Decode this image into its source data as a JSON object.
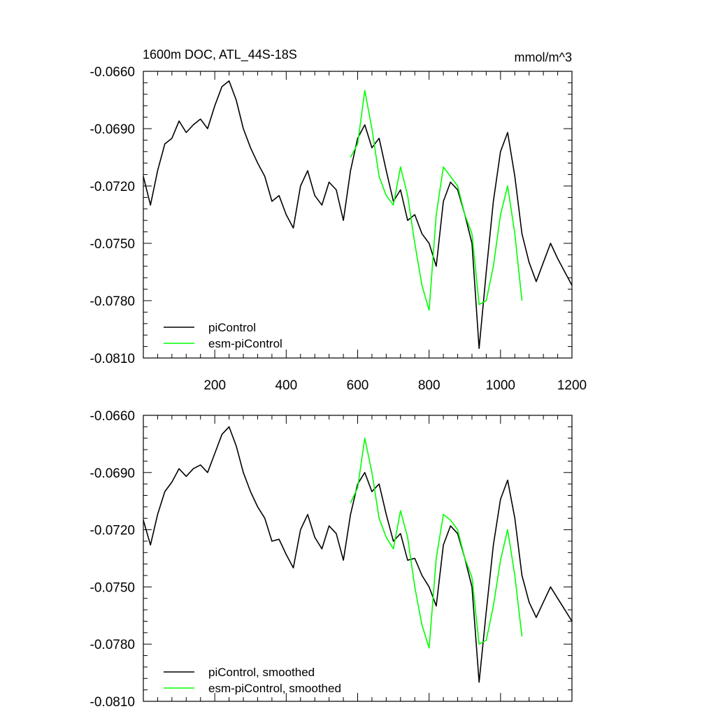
{
  "chart_data": [
    {
      "type": "line",
      "title": "1600m DOC, ATL_44S-18S",
      "units": "mmol/m^3",
      "xlim": [
        0,
        1200
      ],
      "ylim": [
        -0.081,
        -0.066
      ],
      "xticks": [
        200,
        400,
        600,
        800,
        1000,
        1200
      ],
      "xtick_labels": [
        "200",
        "400",
        "600",
        "800",
        "1000",
        "1200"
      ],
      "yticks": [
        -0.066,
        -0.069,
        -0.072,
        -0.075,
        -0.078,
        -0.081
      ],
      "ytick_labels": [
        "-0.0660",
        "-0.0690",
        "-0.0720",
        "-0.0750",
        "-0.0780",
        "-0.0810"
      ],
      "grid": false,
      "legend_position": "bottom-left",
      "series": [
        {
          "name": "piControl",
          "color": "#000000",
          "x": [
            0,
            20,
            40,
            60,
            80,
            100,
            120,
            140,
            160,
            180,
            200,
            220,
            240,
            260,
            280,
            300,
            320,
            340,
            360,
            380,
            400,
            420,
            440,
            460,
            480,
            500,
            520,
            540,
            560,
            580,
            600,
            620,
            640,
            660,
            680,
            700,
            720,
            740,
            760,
            780,
            800,
            820,
            840,
            860,
            880,
            900,
            920,
            940,
            960,
            980,
            1000,
            1020,
            1040,
            1060,
            1080,
            1100,
            1120,
            1140,
            1160,
            1180,
            1200
          ],
          "y": [
            -0.0715,
            -0.073,
            -0.0712,
            -0.0698,
            -0.0695,
            -0.0686,
            -0.0692,
            -0.0688,
            -0.0685,
            -0.069,
            -0.0678,
            -0.0668,
            -0.0665,
            -0.0675,
            -0.069,
            -0.07,
            -0.0708,
            -0.0715,
            -0.0728,
            -0.0725,
            -0.0735,
            -0.0742,
            -0.072,
            -0.0712,
            -0.0725,
            -0.073,
            -0.0718,
            -0.0722,
            -0.0738,
            -0.0712,
            -0.0695,
            -0.0688,
            -0.07,
            -0.0695,
            -0.0712,
            -0.0728,
            -0.0722,
            -0.0738,
            -0.0735,
            -0.0745,
            -0.075,
            -0.0762,
            -0.0728,
            -0.0718,
            -0.0722,
            -0.0735,
            -0.075,
            -0.0805,
            -0.0765,
            -0.0728,
            -0.0702,
            -0.0692,
            -0.0715,
            -0.0745,
            -0.076,
            -0.077,
            -0.076,
            -0.075,
            -0.0758,
            -0.0765,
            -0.0772
          ]
        },
        {
          "name": "esm-piControl",
          "color": "#00ff00",
          "x": [
            580,
            600,
            620,
            640,
            660,
            680,
            700,
            720,
            740,
            760,
            780,
            800,
            820,
            840,
            860,
            880,
            900,
            920,
            940,
            960,
            980,
            1000,
            1020,
            1040,
            1060
          ],
          "y": [
            -0.0705,
            -0.0698,
            -0.067,
            -0.069,
            -0.0715,
            -0.0725,
            -0.073,
            -0.071,
            -0.0725,
            -0.075,
            -0.0772,
            -0.0785,
            -0.0735,
            -0.071,
            -0.0715,
            -0.072,
            -0.0735,
            -0.0745,
            -0.0782,
            -0.078,
            -0.0762,
            -0.0735,
            -0.072,
            -0.0745,
            -0.078
          ]
        }
      ]
    },
    {
      "type": "line",
      "xlim": [
        0,
        1200
      ],
      "ylim": [
        -0.081,
        -0.066
      ],
      "xticks": [
        200,
        400,
        600,
        800,
        1000,
        1200
      ],
      "yticks": [
        -0.066,
        -0.069,
        -0.072,
        -0.075,
        -0.078,
        -0.081
      ],
      "ytick_labels": [
        "-0.0660",
        "-0.0690",
        "-0.0720",
        "-0.0750",
        "-0.0780",
        "-0.0810"
      ],
      "grid": false,
      "legend_position": "bottom-left",
      "series": [
        {
          "name": "piControl, smoothed",
          "color": "#000000",
          "x": [
            0,
            20,
            40,
            60,
            80,
            100,
            120,
            140,
            160,
            180,
            200,
            220,
            240,
            260,
            280,
            300,
            320,
            340,
            360,
            380,
            400,
            420,
            440,
            460,
            480,
            500,
            520,
            540,
            560,
            580,
            600,
            620,
            640,
            660,
            680,
            700,
            720,
            740,
            760,
            780,
            800,
            820,
            840,
            860,
            880,
            900,
            920,
            940,
            960,
            980,
            1000,
            1020,
            1040,
            1060,
            1080,
            1100,
            1120,
            1140,
            1160,
            1180,
            1200
          ],
          "y": [
            -0.0715,
            -0.0728,
            -0.0712,
            -0.07,
            -0.0695,
            -0.0688,
            -0.0692,
            -0.0688,
            -0.0686,
            -0.069,
            -0.068,
            -0.067,
            -0.0666,
            -0.0676,
            -0.069,
            -0.07,
            -0.0708,
            -0.0714,
            -0.0726,
            -0.0725,
            -0.0733,
            -0.074,
            -0.072,
            -0.0712,
            -0.0724,
            -0.073,
            -0.0718,
            -0.0722,
            -0.0736,
            -0.0712,
            -0.0696,
            -0.069,
            -0.07,
            -0.0696,
            -0.0712,
            -0.0726,
            -0.0722,
            -0.0736,
            -0.0735,
            -0.0744,
            -0.075,
            -0.076,
            -0.0728,
            -0.0718,
            -0.0722,
            -0.0735,
            -0.075,
            -0.08,
            -0.0763,
            -0.0728,
            -0.0704,
            -0.0694,
            -0.0714,
            -0.0744,
            -0.0758,
            -0.0766,
            -0.0758,
            -0.075,
            -0.0756,
            -0.0762,
            -0.0768
          ]
        },
        {
          "name": "esm-piControl, smoothed",
          "color": "#00ff00",
          "x": [
            580,
            600,
            620,
            640,
            660,
            680,
            700,
            720,
            740,
            760,
            780,
            800,
            820,
            840,
            860,
            880,
            900,
            920,
            940,
            960,
            980,
            1000,
            1020,
            1040,
            1060
          ],
          "y": [
            -0.0706,
            -0.0698,
            -0.0672,
            -0.069,
            -0.0714,
            -0.0724,
            -0.073,
            -0.071,
            -0.0724,
            -0.075,
            -0.077,
            -0.0782,
            -0.0735,
            -0.0712,
            -0.0715,
            -0.072,
            -0.0735,
            -0.0745,
            -0.078,
            -0.0778,
            -0.076,
            -0.0736,
            -0.072,
            -0.0744,
            -0.0776
          ]
        }
      ]
    }
  ]
}
